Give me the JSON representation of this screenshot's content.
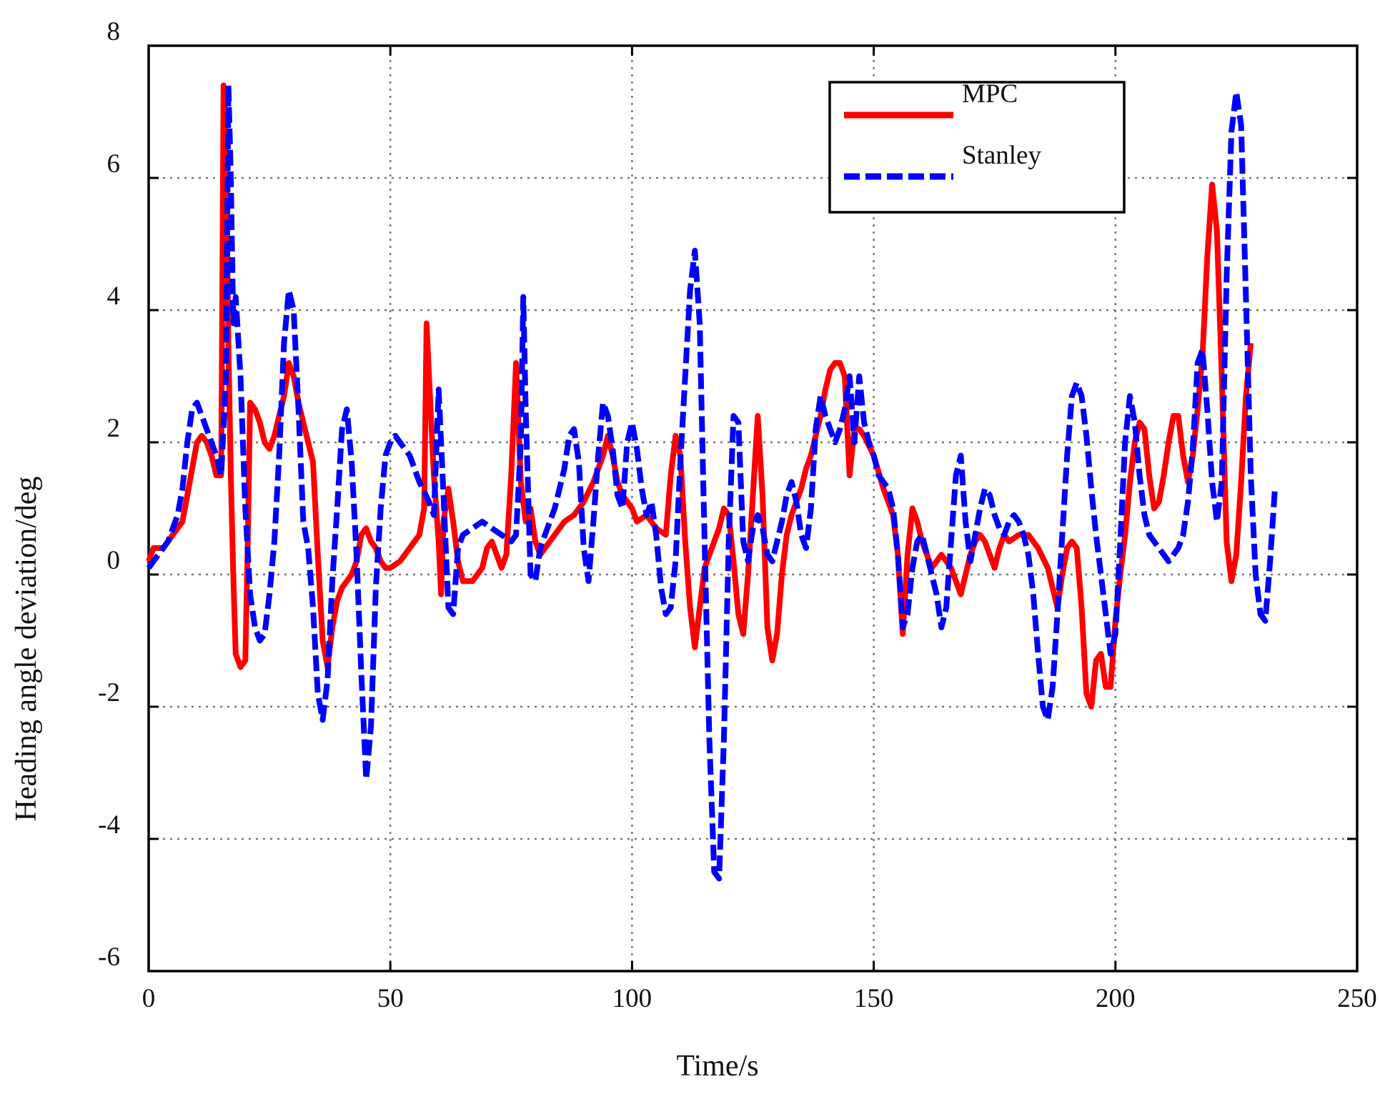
{
  "chart_data": {
    "type": "line",
    "xlabel": "Time/s",
    "ylabel": "Heading angle deviation/deg",
    "xlim": [
      0,
      250
    ],
    "ylim": [
      -6,
      8
    ],
    "xticks": [
      0,
      50,
      100,
      150,
      200,
      250
    ],
    "yticks": [
      -6,
      -4,
      -2,
      0,
      2,
      4,
      6,
      8
    ],
    "grid": true,
    "legend": "upper right",
    "series": [
      {
        "name": "MPC",
        "color": "#ff0000",
        "dash": "solid",
        "x": [
          0,
          1,
          3,
          5,
          7,
          8,
          9,
          10,
          11,
          12,
          13,
          14,
          15,
          15.5,
          16,
          16.5,
          17,
          17.5,
          18,
          19,
          20,
          20.5,
          21,
          22,
          23,
          24,
          25,
          26,
          27,
          28,
          29,
          30,
          31,
          32,
          33,
          34,
          35,
          36,
          37,
          38,
          39,
          40,
          41,
          42,
          43,
          44,
          45,
          46,
          47,
          48,
          49,
          50,
          52,
          54,
          56,
          57,
          57.5,
          58,
          59,
          60,
          60.5,
          61,
          62,
          63,
          64,
          65,
          67,
          69,
          70,
          71,
          72,
          73,
          74,
          75,
          76,
          77,
          78,
          79,
          80,
          81,
          82,
          84,
          86,
          88,
          90,
          92,
          94,
          95,
          96,
          97,
          98,
          100,
          101,
          103,
          105,
          107,
          108,
          109,
          110,
          111,
          112,
          113,
          114,
          115,
          116,
          117,
          118,
          119,
          120,
          121,
          122,
          123,
          124,
          125,
          126,
          127,
          128,
          129,
          130,
          131,
          132,
          133,
          134,
          135,
          136,
          137,
          138,
          139,
          140,
          141,
          142,
          143,
          144,
          145,
          146,
          147,
          148,
          150,
          152,
          154,
          155,
          156,
          157,
          158,
          159,
          160,
          161,
          162,
          164,
          165,
          166,
          167,
          168,
          169,
          170,
          171,
          172,
          173,
          174,
          175,
          176,
          177,
          178,
          180,
          182,
          184,
          186,
          187,
          188,
          189,
          190,
          191,
          192,
          193,
          194,
          195,
          196,
          197,
          198,
          199,
          200,
          201,
          202,
          203,
          204,
          205,
          206,
          207,
          208,
          209,
          210,
          211,
          212,
          213,
          214,
          215,
          216,
          217,
          218,
          219,
          220,
          221,
          222,
          223,
          224,
          225,
          226,
          227,
          228
        ],
        "values": [
          0.2,
          0.4,
          0.4,
          0.6,
          0.8,
          1.2,
          1.6,
          2.0,
          2.1,
          2.0,
          1.8,
          1.5,
          1.5,
          7.4,
          6.5,
          3.5,
          1.5,
          0,
          -1.2,
          -1.4,
          -1.3,
          0.5,
          2.6,
          2.5,
          2.3,
          2.0,
          1.9,
          2.1,
          2.4,
          2.7,
          3.2,
          3.0,
          2.6,
          2.3,
          2.0,
          1.7,
          0.3,
          -1.0,
          -1.4,
          -0.8,
          -0.4,
          -0.2,
          -0.1,
          0,
          0.2,
          0.6,
          0.7,
          0.5,
          0.4,
          0.2,
          0.1,
          0.1,
          0.2,
          0.4,
          0.6,
          1.0,
          3.8,
          3.0,
          1.5,
          0.5,
          -0.3,
          0.8,
          1.3,
          0.8,
          0.2,
          -0.1,
          -0.1,
          0.1,
          0.4,
          0.5,
          0.3,
          0.1,
          0.3,
          1.5,
          3.2,
          1.4,
          0.8,
          1.0,
          0.5,
          0.3,
          0.4,
          0.6,
          0.8,
          0.9,
          1.1,
          1.4,
          1.8,
          2.1,
          1.8,
          1.4,
          1.2,
          1.0,
          0.8,
          0.9,
          0.7,
          0.6,
          1.5,
          2.1,
          1.8,
          0.5,
          -0.5,
          -1.1,
          -0.5,
          0.1,
          0.3,
          0.5,
          0.7,
          1.0,
          0.9,
          0.2,
          -0.6,
          -0.9,
          0,
          1.2,
          2.4,
          1.2,
          -0.8,
          -1.3,
          -0.9,
          0,
          0.6,
          0.9,
          1.1,
          1.3,
          1.6,
          1.8,
          2.1,
          2.4,
          2.8,
          3.1,
          3.2,
          3.2,
          3.0,
          1.5,
          2.2,
          2.2,
          2.1,
          1.8,
          1.3,
          0.9,
          0.3,
          -0.9,
          0.3,
          1.0,
          0.8,
          0.5,
          0.3,
          0.1,
          0.3,
          0.2,
          0.1,
          -0.1,
          -0.3,
          0,
          0.3,
          0.5,
          0.6,
          0.5,
          0.3,
          0.1,
          0.4,
          0.6,
          0.5,
          0.6,
          0.6,
          0.4,
          0.1,
          -0.2,
          -0.5,
          0,
          0.4,
          0.5,
          0.4,
          -0.5,
          -1.8,
          -2.0,
          -1.3,
          -1.2,
          -1.7,
          -1.7,
          -0.7,
          0,
          0.6,
          1.4,
          2.0,
          2.3,
          2.2,
          1.5,
          1.0,
          1.1,
          1.5,
          2.0,
          2.4,
          2.4,
          1.8,
          1.4,
          1.8,
          2.5,
          3.3,
          4.8,
          5.9,
          5.2,
          3.0,
          0.5,
          -0.1,
          0.3,
          1.4,
          2.7,
          3.5
        ]
      },
      {
        "name": "Stanley",
        "color": "#0000ff",
        "dash": "dashed",
        "x": [
          0,
          2,
          4,
          6,
          7,
          8,
          9,
          10,
          11,
          12,
          13,
          14,
          15,
          16,
          16.5,
          17,
          17.5,
          18,
          19,
          20,
          21,
          22,
          23,
          24,
          25,
          26,
          27,
          28,
          29,
          30,
          31,
          32,
          33,
          34,
          35,
          36,
          37,
          38,
          39,
          40,
          41,
          42,
          43,
          44,
          45,
          46,
          47,
          48,
          49,
          50,
          51,
          52,
          54,
          56,
          58,
          59,
          60,
          61,
          62,
          63,
          64,
          65,
          67,
          69,
          71,
          73,
          75,
          76,
          77,
          77.5,
          78,
          79,
          80,
          81,
          82,
          84,
          86,
          87,
          88,
          89,
          90,
          91,
          92,
          93,
          94,
          95,
          96,
          97,
          98,
          99,
          100,
          101,
          102,
          103,
          104,
          105,
          106,
          107,
          108,
          109,
          110,
          111,
          112,
          113,
          114,
          115,
          116,
          117,
          118,
          119,
          120,
          121,
          122,
          123,
          124,
          125,
          126,
          127,
          128,
          129,
          130,
          131,
          132,
          133,
          134,
          135,
          136,
          137,
          138,
          139,
          140,
          141,
          142,
          143,
          144,
          145,
          146,
          147,
          148,
          149,
          150,
          151,
          152,
          153,
          154,
          155,
          156,
          157,
          158,
          159,
          160,
          161,
          162,
          163,
          164,
          165,
          166,
          167,
          168,
          169,
          170,
          171,
          172,
          173,
          174,
          175,
          176,
          177,
          178,
          179,
          180,
          181,
          182,
          183,
          184,
          185,
          186,
          187,
          188,
          189,
          190,
          191,
          192,
          193,
          194,
          195,
          196,
          197,
          198,
          199,
          200,
          201,
          202,
          203,
          204,
          205,
          206,
          207,
          208,
          209,
          210,
          211,
          212,
          213,
          214,
          215,
          216,
          217,
          218,
          219,
          220,
          221,
          222,
          223,
          224,
          225,
          226,
          227,
          228,
          229,
          230,
          231,
          232,
          233
        ],
        "values": [
          0.1,
          0.3,
          0.5,
          0.9,
          1.3,
          2.0,
          2.5,
          2.6,
          2.4,
          2.2,
          2.0,
          1.8,
          1.5,
          3.0,
          7.4,
          6.0,
          3.8,
          4.2,
          3.0,
          1.0,
          -0.3,
          -0.8,
          -1.0,
          -0.9,
          -0.3,
          0.5,
          1.8,
          3.5,
          4.3,
          4.0,
          2.5,
          0.8,
          0.4,
          -0.5,
          -1.8,
          -2.2,
          -1.6,
          -0.1,
          1.0,
          2.2,
          2.5,
          1.7,
          0.3,
          -1.5,
          -3.1,
          -2.3,
          -0.2,
          1.0,
          1.8,
          2.0,
          2.1,
          2.0,
          1.8,
          1.4,
          1.1,
          0.9,
          2.8,
          1.2,
          -0.5,
          -0.6,
          0.4,
          0.6,
          0.7,
          0.8,
          0.7,
          0.6,
          0.5,
          0.6,
          2.0,
          4.2,
          2.5,
          0,
          -0.1,
          0.4,
          0.6,
          1.0,
          1.6,
          2.1,
          2.2,
          1.7,
          0.4,
          -0.1,
          0.8,
          1.8,
          2.6,
          2.4,
          1.9,
          1.2,
          1.0,
          2.0,
          2.3,
          1.9,
          1.3,
          0.9,
          1.1,
          0.6,
          -0.2,
          -0.6,
          -0.5,
          0.2,
          1.7,
          3.0,
          4.3,
          4.9,
          3.8,
          0.5,
          -2.5,
          -4.5,
          -4.6,
          -2.5,
          0.5,
          2.4,
          2.3,
          0.5,
          0.2,
          0.7,
          0.9,
          0.7,
          0.3,
          0.2,
          0.5,
          0.8,
          1.2,
          1.4,
          1.1,
          0.6,
          0.4,
          1.0,
          2.2,
          2.7,
          2.4,
          2.2,
          2.0,
          2.2,
          2.5,
          3.0,
          2.0,
          3.0,
          2.3,
          2.0,
          1.8,
          1.5,
          1.4,
          1.3,
          1.0,
          0.3,
          -0.8,
          -0.6,
          0.1,
          0.5,
          0.6,
          0.3,
          0,
          -0.3,
          -0.8,
          -0.5,
          0.5,
          1.5,
          1.8,
          0.8,
          0.2,
          0.6,
          1.0,
          1.3,
          1.2,
          0.9,
          0.7,
          0.6,
          0.8,
          0.9,
          0.8,
          0.6,
          0.3,
          -0.3,
          -1.2,
          -2.0,
          -2.2,
          -1.7,
          -0.6,
          0.6,
          1.8,
          2.7,
          2.9,
          2.7,
          2.1,
          1.3,
          0.6,
          0,
          -0.6,
          -1.2,
          -0.9,
          0.5,
          2.0,
          2.7,
          2.3,
          1.5,
          0.9,
          0.6,
          0.5,
          0.4,
          0.3,
          0.2,
          0.3,
          0.4,
          0.6,
          1.1,
          1.9,
          3.2,
          3.4,
          2.5,
          1.4,
          0.8,
          1.4,
          4.5,
          6.7,
          7.3,
          6.8,
          4.2,
          1.5,
          0,
          -0.6,
          -0.7,
          0.2,
          1.3
        ]
      }
    ]
  }
}
